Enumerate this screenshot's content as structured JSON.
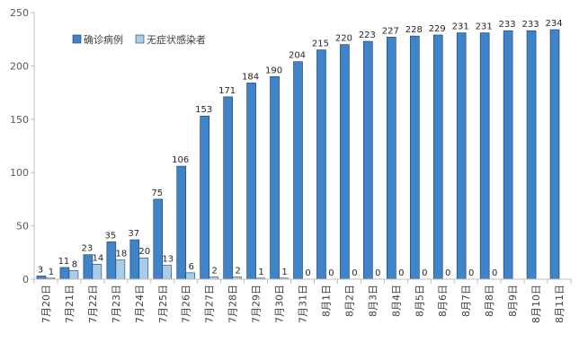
{
  "chart_data": {
    "type": "bar",
    "categories": [
      "7月20日",
      "7月21日",
      "7月22日",
      "7月23日",
      "7月24日",
      "7月25日",
      "7月26日",
      "7月27日",
      "7月28日",
      "7月29日",
      "7月30日",
      "7月31日",
      "8月1日",
      "8月2日",
      "8月3日",
      "8月4日",
      "8月5日",
      "8月6日",
      "8月7日",
      "8月8日",
      "8月9日",
      "8月10日",
      "8月11日"
    ],
    "series": [
      {
        "name": "确诊病例",
        "color": "#3f83c9",
        "values": [
          3,
          11,
          23,
          35,
          37,
          75,
          106,
          153,
          171,
          184,
          190,
          204,
          215,
          220,
          223,
          227,
          228,
          229,
          231,
          231,
          233,
          233,
          234
        ]
      },
      {
        "name": "无症状感染者",
        "color": "#a9cde9",
        "values": [
          1,
          8,
          14,
          18,
          20,
          13,
          6,
          2,
          2,
          1,
          1,
          0,
          0,
          0,
          0,
          0,
          0,
          0,
          0,
          0,
          null,
          null,
          null
        ]
      }
    ],
    "ylim": [
      0,
      250
    ],
    "yticks": [
      0,
      50,
      100,
      150,
      200,
      250
    ],
    "grid": false,
    "legend_position": "top-left",
    "title": "",
    "xlabel": "",
    "ylabel": ""
  }
}
